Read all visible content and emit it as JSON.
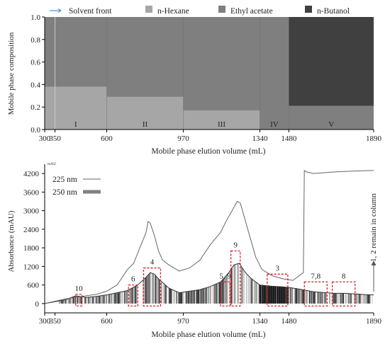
{
  "chart_data": [
    {
      "type": "area",
      "ylabel": "Mobile phase composition",
      "xlabel": "Mobile phase elution volume (mL)",
      "xlim": [
        300,
        1890
      ],
      "ylim": [
        0,
        1.0
      ],
      "x_ticks": [
        "300",
        "350",
        "600",
        "970",
        "1340",
        "1480",
        "1890"
      ],
      "x_tick_values": [
        300,
        350,
        600,
        970,
        1340,
        1480,
        1890
      ],
      "y_ticks": [
        "0.0",
        "0.2",
        "0.4",
        "0.6",
        "0.8",
        "1.0"
      ],
      "y_tick_values": [
        0,
        0.2,
        0.4,
        0.6,
        0.8,
        1.0
      ],
      "legend": [
        {
          "label": "Solvent front",
          "color": "#4a90d9"
        },
        {
          "label": "n-Hexane",
          "color": "#a6a6a6"
        },
        {
          "label": "Ethyl acetate",
          "color": "#7f7f7f"
        },
        {
          "label": "n-Butanol",
          "color": "#404040"
        }
      ],
      "legend_position": "top",
      "solvent_front_x": 350,
      "stages": [
        {
          "label": "I",
          "x_start": 300,
          "x_end": 600,
          "hexane": 0.38,
          "ethyl_acetate": 0.62,
          "butanol": 0
        },
        {
          "label": "II",
          "x_start": 600,
          "x_end": 970,
          "hexane": 0.29,
          "ethyl_acetate": 0.71,
          "butanol": 0
        },
        {
          "label": "III",
          "x_start": 970,
          "x_end": 1340,
          "hexane": 0.17,
          "ethyl_acetate": 0.83,
          "butanol": 0
        },
        {
          "label": "IV",
          "x_start": 1340,
          "x_end": 1480,
          "hexane": 0,
          "ethyl_acetate": 1.0,
          "butanol": 0
        },
        {
          "label": "V",
          "x_start": 1480,
          "x_end": 1890,
          "hexane": 0,
          "ethyl_acetate": 0.21,
          "butanol": 0.79
        }
      ]
    },
    {
      "type": "line",
      "unit_label": "mAU",
      "ylabel": "Absorbance (mAU)",
      "xlabel": "Mobile phase elution volume (mL)",
      "xlim": [
        300,
        1890
      ],
      "ylim": [
        -300,
        4500
      ],
      "x_ticks": [
        "300",
        "350",
        "600",
        "970",
        "1340",
        "1480",
        "1890"
      ],
      "x_tick_values": [
        300,
        350,
        600,
        970,
        1340,
        1480,
        1890
      ],
      "y_ticks": [
        "0",
        "600",
        "1200",
        "1800",
        "2400",
        "3000",
        "3600",
        "4200"
      ],
      "y_tick_values": [
        0,
        600,
        1200,
        1800,
        2400,
        3000,
        3600,
        4200
      ],
      "legend_position": "top-left",
      "series": [
        {
          "name": "225 nm",
          "color": "#666666",
          "x": [
            300,
            400,
            450,
            500,
            550,
            600,
            650,
            700,
            730,
            760,
            790,
            800,
            810,
            830,
            850,
            870,
            900,
            950,
            1000,
            1050,
            1100,
            1150,
            1180,
            1210,
            1230,
            1245,
            1260,
            1290,
            1320,
            1350,
            1400,
            1450,
            1500,
            1550,
            1555,
            1565,
            1600,
            1700,
            1800,
            1890
          ],
          "y": [
            0,
            150,
            200,
            250,
            300,
            400,
            600,
            1100,
            1300,
            1800,
            2300,
            2650,
            2600,
            2200,
            1700,
            1400,
            1250,
            1050,
            1150,
            1400,
            1900,
            2300,
            2700,
            3050,
            3300,
            3250,
            2900,
            2200,
            1500,
            1100,
            900,
            800,
            750,
            1000,
            4300,
            4250,
            4200,
            4250,
            4280,
            4300
          ]
        },
        {
          "name": "250 nm",
          "color": "#808080",
          "x": [
            300,
            400,
            450,
            500,
            550,
            600,
            650,
            700,
            750,
            790,
            810,
            830,
            850,
            900,
            950,
            1000,
            1050,
            1100,
            1150,
            1190,
            1215,
            1240,
            1270,
            1300,
            1340,
            1400,
            1450,
            1480,
            1500,
            1520,
            1600,
            1700,
            1750,
            1800,
            1850,
            1890
          ],
          "y": [
            0,
            120,
            250,
            200,
            230,
            280,
            350,
            420,
            600,
            850,
            1000,
            950,
            800,
            500,
            350,
            400,
            450,
            550,
            700,
            1000,
            1250,
            1300,
            1000,
            800,
            600,
            560,
            540,
            520,
            500,
            480,
            380,
            330,
            330,
            310,
            290,
            280
          ]
        }
      ],
      "fraction_boxes": [
        {
          "label": "10",
          "x_start": 450,
          "x_end": 480,
          "y_top": 300
        },
        {
          "label": "6",
          "x_start": 705,
          "x_end": 750,
          "y_top": 600
        },
        {
          "label": "4",
          "x_start": 778,
          "x_end": 860,
          "y_top": 1150
        },
        {
          "label": "5, 9",
          "x_start": 1150,
          "x_end": 1195,
          "y_top": 700
        },
        {
          "label": "9",
          "x_start": 1200,
          "x_end": 1245,
          "y_top": 1700
        },
        {
          "label": "3",
          "x_start": 1375,
          "x_end": 1475,
          "y_top": 950
        },
        {
          "label": "7,8",
          "x_start": 1555,
          "x_end": 1665,
          "y_top": 700
        },
        {
          "label": "8",
          "x_start": 1690,
          "x_end": 1800,
          "y_top": 700
        }
      ],
      "side_annotation": "1, 2 remain in column"
    }
  ]
}
